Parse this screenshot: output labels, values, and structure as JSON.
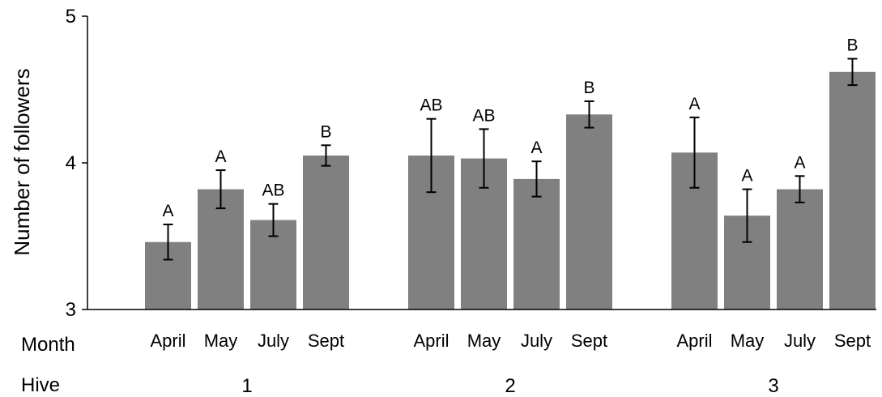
{
  "chart_data": {
    "type": "bar",
    "title": "",
    "ylabel": "Number of followers",
    "ylim": [
      3,
      5
    ],
    "yticks": [
      3,
      4,
      5
    ],
    "row_labels": {
      "month": "Month",
      "hive": "Hive"
    },
    "groups": [
      {
        "hive": "1",
        "bars": [
          {
            "month": "April",
            "value": 3.46,
            "error": 0.12,
            "sig": "A"
          },
          {
            "month": "May",
            "value": 3.82,
            "error": 0.13,
            "sig": "A"
          },
          {
            "month": "July",
            "value": 3.61,
            "error": 0.11,
            "sig": "AB"
          },
          {
            "month": "Sept",
            "value": 4.05,
            "error": 0.07,
            "sig": "B"
          }
        ]
      },
      {
        "hive": "2",
        "bars": [
          {
            "month": "April",
            "value": 4.05,
            "error": 0.25,
            "sig": "AB"
          },
          {
            "month": "May",
            "value": 4.03,
            "error": 0.2,
            "sig": "AB"
          },
          {
            "month": "July",
            "value": 3.89,
            "error": 0.12,
            "sig": "A"
          },
          {
            "month": "Sept",
            "value": 4.33,
            "error": 0.09,
            "sig": "B"
          }
        ]
      },
      {
        "hive": "3",
        "bars": [
          {
            "month": "April",
            "value": 4.07,
            "error": 0.24,
            "sig": "A"
          },
          {
            "month": "May",
            "value": 3.64,
            "error": 0.18,
            "sig": "A"
          },
          {
            "month": "July",
            "value": 3.82,
            "error": 0.09,
            "sig": "A"
          },
          {
            "month": "Sept",
            "value": 4.62,
            "error": 0.09,
            "sig": "B"
          }
        ]
      }
    ],
    "bar_color": "#808080",
    "axis_color": "#000000",
    "grid": false,
    "legend": "none"
  }
}
